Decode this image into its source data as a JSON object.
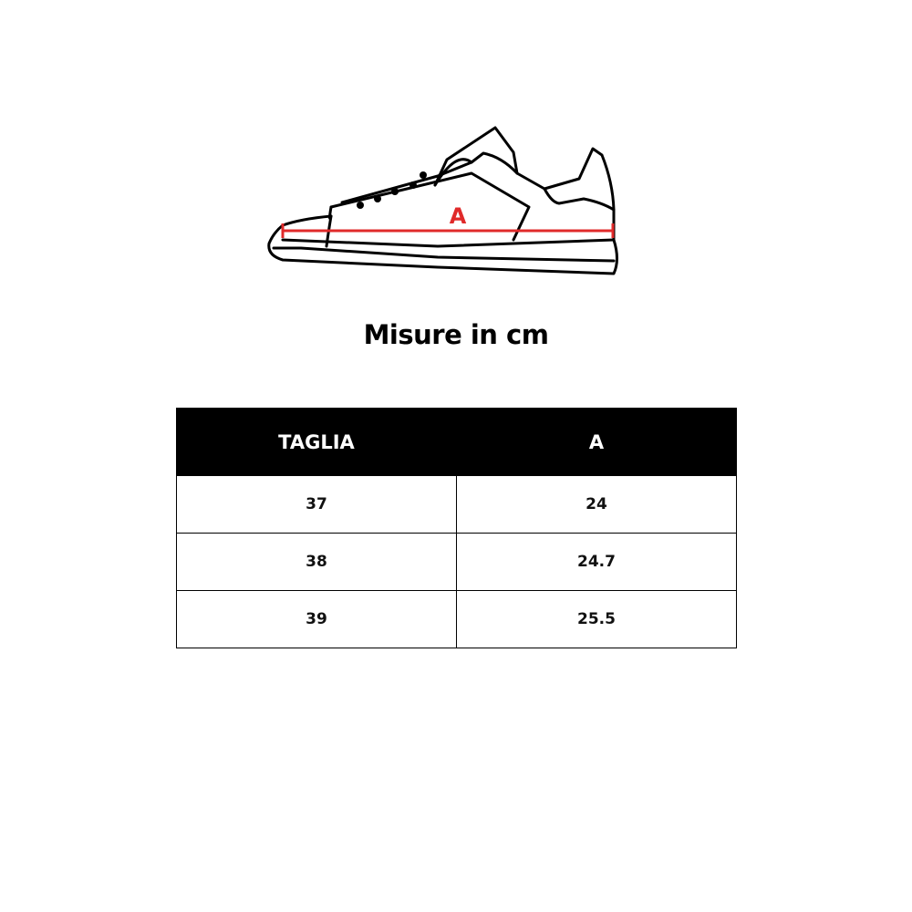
{
  "diagram": {
    "measure_label": "A",
    "measure_color": "#e02a2a"
  },
  "title": "Misure in cm",
  "table": {
    "headers": [
      "TAGLIA",
      "A"
    ],
    "rows": [
      [
        "37",
        "24"
      ],
      [
        "38",
        "24.7"
      ],
      [
        "39",
        "25.5"
      ]
    ]
  }
}
